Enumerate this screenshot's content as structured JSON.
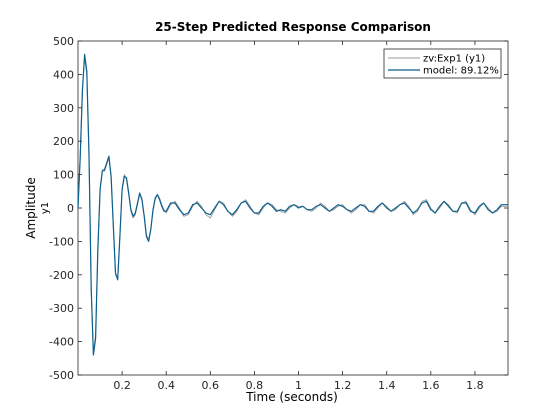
{
  "chart_data": {
    "type": "line",
    "title": "25-Step Predicted Response Comparison",
    "xlabel": "Time (seconds)",
    "ylabel": "Amplitude",
    "ylabel_sub": "y1",
    "xlim": [
      0,
      1.95
    ],
    "ylim": [
      -500,
      500
    ],
    "xticks": [
      0.2,
      0.4,
      0.6,
      0.8,
      1,
      1.2,
      1.4,
      1.6,
      1.8
    ],
    "xtick_labels": [
      "0.2",
      "0.4",
      "0.6",
      "0.8",
      "1",
      "1.2",
      "1.4",
      "1.6",
      "1.8"
    ],
    "yticks": [
      -500,
      -400,
      -300,
      -200,
      -100,
      0,
      100,
      200,
      300,
      400,
      500
    ],
    "ytick_labels": [
      "-500",
      "-400",
      "-300",
      "-200",
      "-100",
      "0",
      "100",
      "200",
      "300",
      "400",
      "500"
    ],
    "grid": false,
    "legend_position": "top-right",
    "colors": {
      "measured": "#9a9a9a",
      "model": "#0b5f8c"
    },
    "series": [
      {
        "name": "zv:Exp1 (y1)",
        "x": [
          0,
          0.01,
          0.02,
          0.03,
          0.04,
          0.05,
          0.06,
          0.07,
          0.08,
          0.09,
          0.1,
          0.11,
          0.12,
          0.13,
          0.14,
          0.15,
          0.16,
          0.17,
          0.18,
          0.19,
          0.2,
          0.21,
          0.22,
          0.23,
          0.24,
          0.25,
          0.26,
          0.27,
          0.28,
          0.29,
          0.3,
          0.31,
          0.32,
          0.33,
          0.34,
          0.35,
          0.36,
          0.37,
          0.38,
          0.39,
          0.4,
          0.42,
          0.44,
          0.46,
          0.48,
          0.5,
          0.52,
          0.54,
          0.56,
          0.58,
          0.6,
          0.62,
          0.64,
          0.66,
          0.68,
          0.7,
          0.72,
          0.74,
          0.76,
          0.78,
          0.8,
          0.82,
          0.84,
          0.86,
          0.88,
          0.9,
          0.92,
          0.94,
          0.96,
          0.98,
          1.0,
          1.02,
          1.04,
          1.06,
          1.08,
          1.1,
          1.12,
          1.14,
          1.16,
          1.18,
          1.2,
          1.22,
          1.24,
          1.26,
          1.28,
          1.3,
          1.32,
          1.34,
          1.36,
          1.38,
          1.4,
          1.42,
          1.44,
          1.46,
          1.48,
          1.5,
          1.52,
          1.54,
          1.56,
          1.58,
          1.6,
          1.62,
          1.64,
          1.66,
          1.68,
          1.7,
          1.72,
          1.74,
          1.76,
          1.78,
          1.8,
          1.82,
          1.84,
          1.86,
          1.88,
          1.9,
          1.92,
          1.95
        ],
        "y": [
          0,
          160,
          360,
          450,
          400,
          150,
          -250,
          -430,
          -380,
          -120,
          60,
          115,
          110,
          130,
          150,
          90,
          -60,
          -200,
          -210,
          -80,
          60,
          100,
          85,
          40,
          -10,
          -30,
          -20,
          10,
          40,
          30,
          -20,
          -80,
          -95,
          -60,
          -10,
          25,
          40,
          30,
          10,
          -5,
          -15,
          10,
          20,
          0,
          -25,
          -20,
          5,
          20,
          5,
          -20,
          -30,
          -5,
          20,
          15,
          -10,
          -25,
          -10,
          15,
          25,
          5,
          -15,
          -20,
          0,
          15,
          10,
          -5,
          -10,
          -15,
          0,
          10,
          5,
          5,
          -5,
          -10,
          0,
          15,
          5,
          -10,
          -5,
          5,
          10,
          -5,
          -15,
          -5,
          10,
          10,
          -10,
          -15,
          0,
          15,
          5,
          -10,
          -5,
          10,
          20,
          5,
          -20,
          -10,
          20,
          25,
          0,
          -15,
          0,
          20,
          10,
          -10,
          -15,
          15,
          20,
          -5,
          -20,
          0,
          15,
          0,
          -15,
          -10,
          5,
          5
        ]
      },
      {
        "name": "model: 89.12%",
        "x": [
          0,
          0.01,
          0.02,
          0.03,
          0.04,
          0.05,
          0.06,
          0.07,
          0.08,
          0.09,
          0.1,
          0.11,
          0.12,
          0.13,
          0.14,
          0.15,
          0.16,
          0.17,
          0.18,
          0.19,
          0.2,
          0.21,
          0.22,
          0.23,
          0.24,
          0.25,
          0.26,
          0.27,
          0.28,
          0.29,
          0.3,
          0.31,
          0.32,
          0.33,
          0.34,
          0.35,
          0.36,
          0.37,
          0.38,
          0.39,
          0.4,
          0.42,
          0.44,
          0.46,
          0.48,
          0.5,
          0.52,
          0.54,
          0.56,
          0.58,
          0.6,
          0.62,
          0.64,
          0.66,
          0.68,
          0.7,
          0.72,
          0.74,
          0.76,
          0.78,
          0.8,
          0.82,
          0.84,
          0.86,
          0.88,
          0.9,
          0.92,
          0.94,
          0.96,
          0.98,
          1.0,
          1.02,
          1.04,
          1.06,
          1.08,
          1.1,
          1.12,
          1.14,
          1.16,
          1.18,
          1.2,
          1.22,
          1.24,
          1.26,
          1.28,
          1.3,
          1.32,
          1.34,
          1.36,
          1.38,
          1.4,
          1.42,
          1.44,
          1.46,
          1.48,
          1.5,
          1.52,
          1.54,
          1.56,
          1.58,
          1.6,
          1.62,
          1.64,
          1.66,
          1.68,
          1.7,
          1.72,
          1.74,
          1.76,
          1.78,
          1.8,
          1.82,
          1.84,
          1.86,
          1.88,
          1.9,
          1.92,
          1.95
        ],
        "y": [
          0,
          150,
          350,
          460,
          410,
          160,
          -240,
          -440,
          -390,
          -130,
          55,
          110,
          115,
          135,
          155,
          95,
          -50,
          -195,
          -215,
          -85,
          55,
          95,
          90,
          45,
          -5,
          -25,
          -15,
          15,
          45,
          25,
          -25,
          -85,
          -100,
          -65,
          -5,
          30,
          40,
          25,
          5,
          -10,
          -10,
          15,
          15,
          -5,
          -20,
          -15,
          10,
          15,
          0,
          -15,
          -20,
          0,
          20,
          10,
          -10,
          -20,
          -5,
          15,
          20,
          0,
          -15,
          -15,
          5,
          15,
          5,
          -10,
          -5,
          -10,
          5,
          10,
          0,
          5,
          -5,
          -5,
          5,
          10,
          0,
          -10,
          0,
          10,
          5,
          -5,
          -10,
          0,
          10,
          5,
          -10,
          -10,
          5,
          15,
          0,
          -10,
          0,
          10,
          15,
          0,
          -15,
          -5,
          15,
          20,
          -5,
          -15,
          5,
          20,
          5,
          -10,
          -10,
          15,
          15,
          -10,
          -15,
          5,
          15,
          -5,
          -15,
          -5,
          10,
          10
        ]
      }
    ]
  }
}
